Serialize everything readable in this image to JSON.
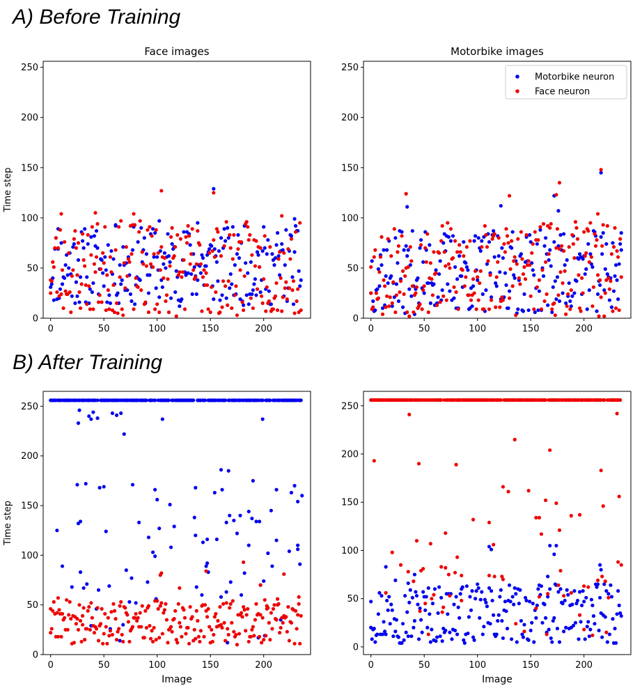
{
  "sections": {
    "a_title": "A) Before Training",
    "b_title": "B) After Training"
  },
  "colors": {
    "motorbike": "#0000ee",
    "face": "#ee0000"
  },
  "chart_data": [
    {
      "id": "a-face",
      "type": "scatter",
      "title": "Face images",
      "xlabel": "",
      "ylabel": "Time step",
      "xlim": [
        -7,
        244
      ],
      "ylim": [
        0,
        256
      ],
      "xticks": [
        0,
        50,
        100,
        150,
        200
      ],
      "yticks": [
        0,
        50,
        100,
        150,
        200,
        250
      ],
      "legend": null,
      "series": [
        {
          "name": "Motorbike neuron",
          "color": "#0000ee",
          "pattern": "a_face_blue",
          "seed": 11,
          "points": [
            [
              102,
              97
            ],
            [
              153,
              129
            ],
            [
              138,
              95
            ],
            [
              7,
              89
            ],
            [
              61,
              93
            ],
            [
              229,
              99
            ]
          ]
        },
        {
          "name": "Face neuron",
          "color": "#ee0000",
          "pattern": "a_face_red",
          "seed": 23,
          "points": [
            [
              104,
              127
            ],
            [
              153,
              125
            ],
            [
              10,
              104
            ],
            [
              42,
              105
            ],
            [
              78,
              104
            ],
            [
              0,
              38
            ],
            [
              217,
              102
            ]
          ]
        }
      ]
    },
    {
      "id": "a-motorbike",
      "type": "scatter",
      "title": "Motorbike images",
      "xlabel": "",
      "ylabel": "",
      "xlim": [
        -7,
        244
      ],
      "ylim": [
        0,
        256
      ],
      "xticks": [
        0,
        50,
        100,
        150,
        200
      ],
      "yticks": [
        0,
        50,
        100,
        150,
        200,
        250
      ],
      "legend": {
        "position": "top-right",
        "entries": [
          "Motorbike neuron",
          "Face neuron"
        ]
      },
      "series": [
        {
          "name": "Motorbike neuron",
          "color": "#0000ee",
          "pattern": "a_moto_blue",
          "seed": 37,
          "points": [
            [
              216,
              145
            ],
            [
              34,
              111
            ],
            [
              122,
              112
            ],
            [
              176,
              107
            ],
            [
              172,
              122
            ],
            [
              235,
              85
            ]
          ]
        },
        {
          "name": "Face neuron",
          "color": "#ee0000",
          "pattern": "a_moto_red",
          "seed": 53,
          "points": [
            [
              216,
              148
            ],
            [
              177,
              135
            ],
            [
              33,
              124
            ],
            [
              130,
              122
            ],
            [
              174,
              123
            ],
            [
              213,
              104
            ],
            [
              0,
              51
            ]
          ]
        }
      ]
    },
    {
      "id": "b-face",
      "type": "scatter",
      "title": "",
      "xlabel": "Image",
      "ylabel": "Time step",
      "xlim": [
        -7,
        244
      ],
      "ylim": [
        0,
        265
      ],
      "xticks": [
        0,
        50,
        100,
        150,
        200
      ],
      "yticks": [
        0,
        50,
        100,
        150,
        200,
        250
      ],
      "legend": null,
      "series": [
        {
          "name": "Motorbike neuron",
          "color": "#0000ee",
          "pattern": "b_face_blue",
          "seed": 71,
          "points": [
            [
              26,
              233
            ],
            [
              27,
              246
            ],
            [
              36,
              240
            ],
            [
              38,
              237
            ],
            [
              40,
              244
            ],
            [
              44,
              238
            ],
            [
              58,
              243
            ],
            [
              62,
              241
            ],
            [
              66,
              243
            ],
            [
              69,
              222
            ],
            [
              105,
              237
            ],
            [
              160,
              186
            ],
            [
              199,
              237
            ],
            [
              26,
              132
            ],
            [
              28,
              134
            ],
            [
              50,
              169
            ],
            [
              52,
              124
            ],
            [
              77,
              171
            ],
            [
              98,
              166
            ],
            [
              154,
              163
            ],
            [
              161,
              166
            ],
            [
              167,
              185
            ],
            [
              168,
              140
            ],
            [
              178,
              140
            ],
            [
              186,
              144
            ],
            [
              190,
              175
            ],
            [
              193,
              134
            ],
            [
              196,
              134
            ],
            [
              204,
              102
            ],
            [
              212,
              166
            ],
            [
              224,
              104
            ],
            [
              226,
              163
            ],
            [
              229,
              170
            ],
            [
              232,
              154
            ],
            [
              236,
              160
            ],
            [
              136,
              120
            ],
            [
              143,
              113
            ],
            [
              147,
              116
            ],
            [
              148,
              83
            ],
            [
              98,
              99
            ],
            [
              31,
              67
            ],
            [
              34,
              71
            ],
            [
              55,
              69
            ],
            [
              71,
              85
            ],
            [
              76,
              77
            ],
            [
              80,
              52
            ],
            [
              232,
              106
            ],
            [
              234,
              91
            ],
            [
              186,
              110
            ],
            [
              172,
              135
            ],
            [
              165,
              63
            ]
          ]
        },
        {
          "name": "Face neuron",
          "color": "#ee0000",
          "pattern": "b_face_red",
          "seed": 89,
          "points": [
            [
              0,
              46
            ],
            [
              7,
              57
            ],
            [
              30,
              30
            ],
            [
              103,
              80
            ],
            [
              104,
              82
            ],
            [
              121,
              67
            ],
            [
              146,
              84
            ],
            [
              181,
              93
            ],
            [
              197,
              70
            ],
            [
              203,
              46
            ],
            [
              213,
              56
            ],
            [
              219,
              81
            ],
            [
              233,
              58
            ]
          ]
        }
      ]
    },
    {
      "id": "b-motorbike",
      "type": "scatter",
      "title": "",
      "xlabel": "Image",
      "ylabel": "",
      "xlim": [
        -7,
        244
      ],
      "ylim": [
        -8,
        265
      ],
      "xticks": [
        0,
        50,
        100,
        150,
        200
      ],
      "yticks": [
        0,
        50,
        100,
        150,
        200,
        250
      ],
      "legend": null,
      "series": [
        {
          "name": "Motorbike neuron",
          "color": "#0000ee",
          "pattern": "b_moto_blue",
          "seed": 97,
          "points": [
            [
              111,
              104
            ],
            [
              113,
              101
            ],
            [
              172,
              96
            ],
            [
              168,
              105
            ],
            [
              174,
              105
            ],
            [
              216,
              80
            ],
            [
              0,
              47
            ],
            [
              14,
              83
            ],
            [
              23,
              69
            ],
            [
              35,
              66
            ],
            [
              41,
              75
            ],
            [
              215,
              85
            ],
            [
              166,
              73
            ]
          ]
        },
        {
          "name": "Face neuron",
          "color": "#ee0000",
          "pattern": "b_moto_red",
          "seed": 131,
          "points": [
            [
              36,
              241
            ],
            [
              135,
              215
            ],
            [
              168,
              204
            ],
            [
              3,
              193
            ],
            [
              45,
              190
            ],
            [
              80,
              189
            ],
            [
              216,
              183
            ],
            [
              233,
              156
            ],
            [
              96,
              132
            ],
            [
              111,
              129
            ],
            [
              115,
              106
            ],
            [
              124,
              166
            ],
            [
              129,
              161
            ],
            [
              148,
              162
            ],
            [
              155,
              134
            ],
            [
              158,
              134
            ],
            [
              160,
              117
            ],
            [
              164,
              152
            ],
            [
              174,
              149
            ],
            [
              177,
              121
            ],
            [
              188,
              136
            ],
            [
              196,
              137
            ],
            [
              213,
              69
            ],
            [
              218,
              146
            ],
            [
              231,
              242
            ],
            [
              232,
              88
            ],
            [
              20,
              98
            ],
            [
              28,
              85
            ],
            [
              43,
              110
            ],
            [
              47,
              79
            ],
            [
              56,
              107
            ],
            [
              70,
              118
            ],
            [
              74,
              53
            ],
            [
              81,
              93
            ],
            [
              85,
              48
            ],
            [
              66,
              83
            ],
            [
              200,
              63
            ],
            [
              204,
              62
            ]
          ]
        }
      ]
    }
  ]
}
